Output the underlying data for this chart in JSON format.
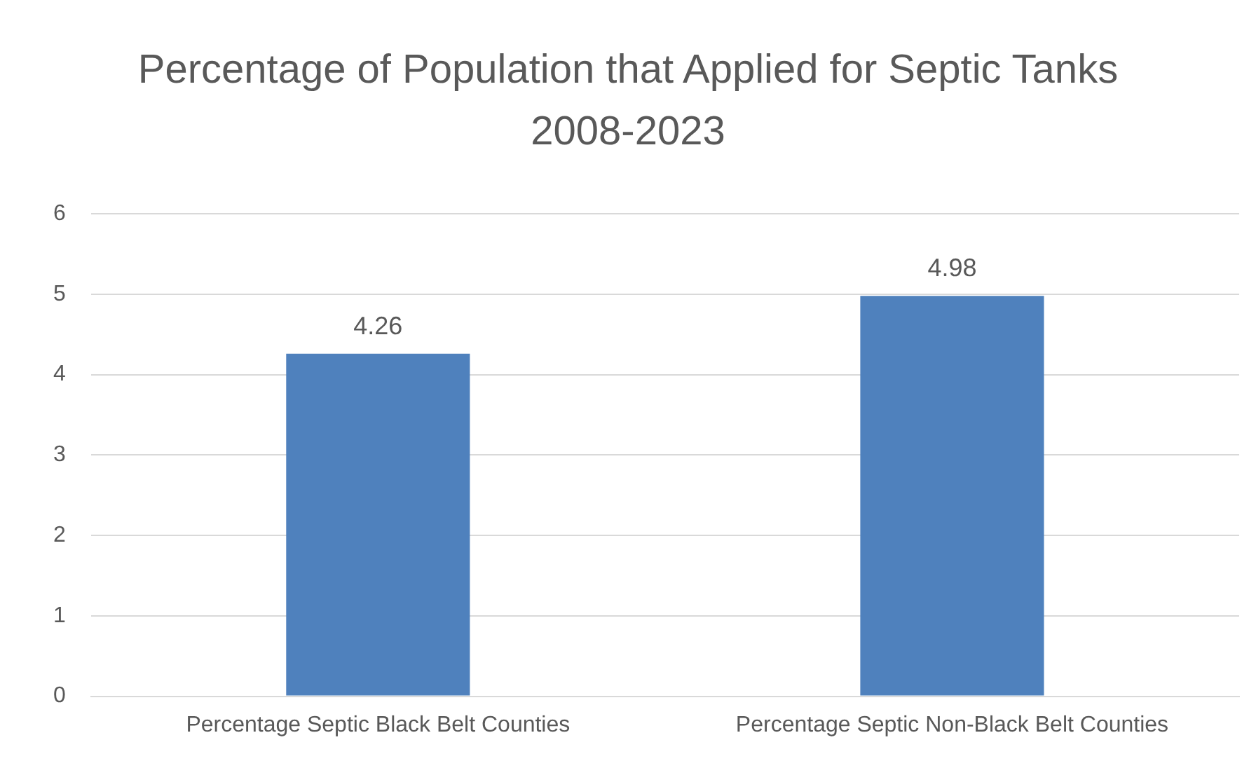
{
  "chart_data": {
    "type": "bar",
    "title": "Percentage of Population that Applied for Septic Tanks 2008-2023",
    "categories": [
      "Percentage Septic Black Belt Counties",
      "Percentage Septic Non-Black Belt Counties"
    ],
    "values": [
      4.26,
      4.98
    ],
    "color": "#4f81bd",
    "ylim": [
      0,
      6
    ],
    "yticks": [
      0,
      1,
      2,
      3,
      4,
      5,
      6
    ],
    "grid": "y",
    "data_labels": true,
    "legend": false
  }
}
